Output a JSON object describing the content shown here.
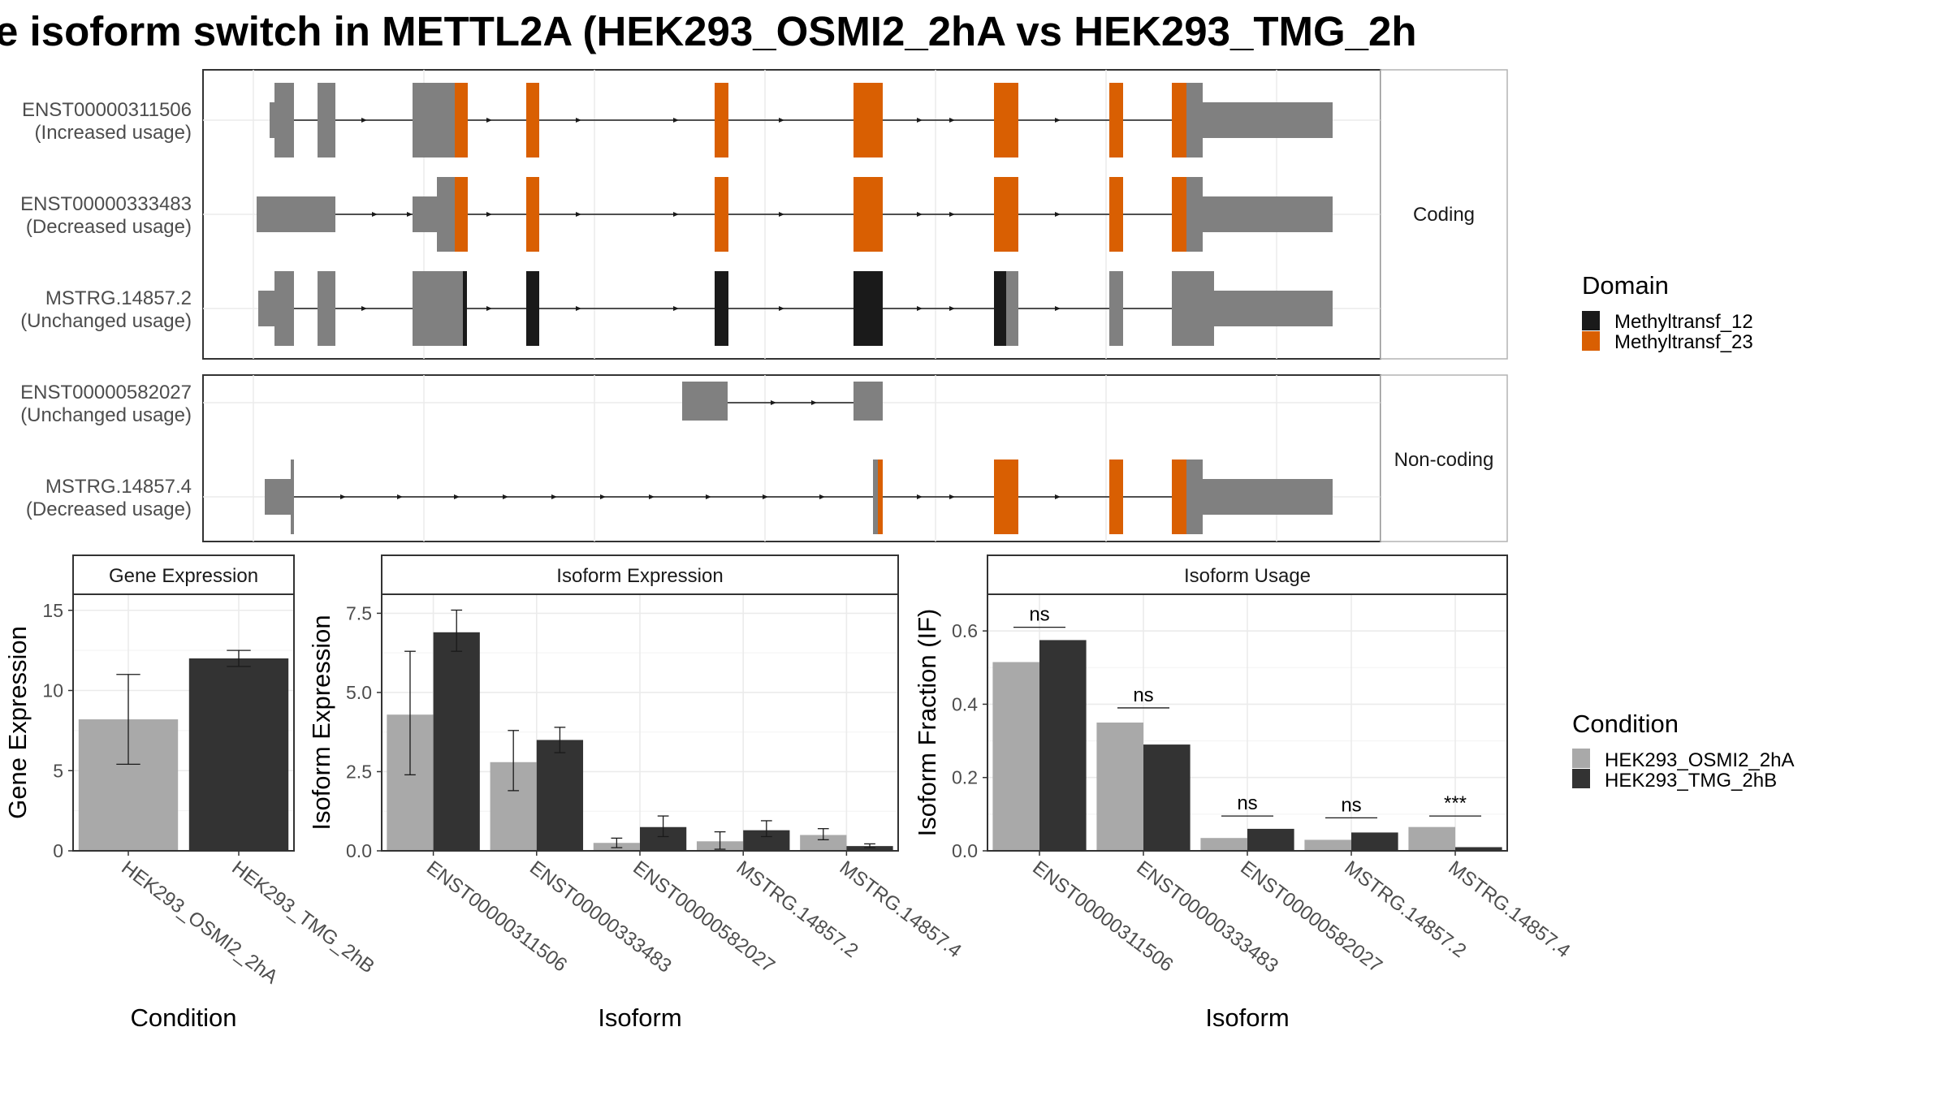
{
  "title": "e isoform switch in METTL2A (HEK293_OSMI2_2hA vs HEK293_TMG_2h",
  "structure_panels": [
    {
      "strip_label": "Coding",
      "isoforms": [
        {
          "id": "ENST00000311506",
          "status": "(Increased usage)"
        },
        {
          "id": "ENST00000333483",
          "status": "(Decreased usage)"
        },
        {
          "id": "MSTRG.14857.2",
          "status": "(Unchanged usage)"
        }
      ]
    },
    {
      "strip_label": "Non-coding",
      "isoforms": [
        {
          "id": "ENST00000582027",
          "status": "(Unchanged usage)"
        },
        {
          "id": "MSTRG.14857.4",
          "status": "(Decreased usage)"
        }
      ]
    }
  ],
  "domain_legend": {
    "title": "Domain",
    "items": [
      {
        "label": "Methyltransf_12",
        "color": "#1a1a1a"
      },
      {
        "label": "Methyltransf_23",
        "color": "#d95f02"
      }
    ]
  },
  "condition_legend": {
    "title": "Condition",
    "items": [
      {
        "label": "HEK293_OSMI2_2hA",
        "color": "#a9a9a9"
      },
      {
        "label": "HEK293_TMG_2hB",
        "color": "#333333"
      }
    ]
  },
  "chart_data": [
    {
      "type": "bar",
      "title": "Gene Expression",
      "xlabel": "Condition",
      "ylabel": "Gene Expression",
      "ylim": [
        0,
        16
      ],
      "yticks": [
        0,
        5,
        10,
        15
      ],
      "ytick_labels": [
        "0",
        "5",
        "10",
        "15"
      ],
      "categories": [
        "HEK293_OSMI2_2hA",
        "HEK293_TMG_2hB"
      ],
      "values": [
        8.2,
        12.0
      ],
      "err_low": [
        5.4,
        11.5
      ],
      "err_high": [
        11.0,
        12.5
      ],
      "colors": [
        "#a9a9a9",
        "#333333"
      ]
    },
    {
      "type": "bar",
      "title": "Isoform Expression",
      "xlabel": "Isoform",
      "ylabel": "Isoform Expression",
      "ylim": [
        0,
        8.1
      ],
      "yticks": [
        0,
        2.5,
        5,
        7.5
      ],
      "ytick_labels": [
        "0.0",
        "2.5",
        "5.0",
        "7.5"
      ],
      "categories": [
        "ENST00000311506",
        "ENST00000333483",
        "ENST00000582027",
        "MSTRG.14857.2",
        "MSTRG.14857.4"
      ],
      "series": [
        {
          "name": "HEK293_OSMI2_2hA",
          "values": [
            4.3,
            2.8,
            0.25,
            0.3,
            0.5
          ],
          "err_low": [
            2.4,
            1.9,
            0.1,
            0.05,
            0.35
          ],
          "err_high": [
            6.3,
            3.8,
            0.4,
            0.6,
            0.7
          ]
        },
        {
          "name": "HEK293_TMG_2hB",
          "values": [
            6.9,
            3.5,
            0.75,
            0.65,
            0.15
          ],
          "err_low": [
            6.3,
            3.1,
            0.45,
            0.45,
            0.1
          ],
          "err_high": [
            7.6,
            3.9,
            1.1,
            0.95,
            0.22
          ]
        }
      ]
    },
    {
      "type": "bar",
      "title": "Isoform Usage",
      "xlabel": "Isoform",
      "ylabel": "Isoform Fraction (IF)",
      "ylim": [
        0,
        0.7
      ],
      "yticks": [
        0,
        0.2,
        0.4,
        0.6
      ],
      "ytick_labels": [
        "0.0",
        "0.2",
        "0.4",
        "0.6"
      ],
      "categories": [
        "ENST00000311506",
        "ENST00000333483",
        "ENST00000582027",
        "MSTRG.14857.2",
        "MSTRG.14857.4"
      ],
      "series": [
        {
          "name": "HEK293_OSMI2_2hA",
          "values": [
            0.515,
            0.35,
            0.035,
            0.03,
            0.065
          ]
        },
        {
          "name": "HEK293_TMG_2hB",
          "values": [
            0.575,
            0.29,
            0.06,
            0.05,
            0.01
          ]
        }
      ],
      "significance": [
        {
          "label": "ns",
          "y": 0.61
        },
        {
          "label": "ns",
          "y": 0.39
        },
        {
          "label": "ns",
          "y": 0.095
        },
        {
          "label": "ns",
          "y": 0.09
        },
        {
          "label": "***",
          "y": 0.095
        }
      ]
    }
  ]
}
